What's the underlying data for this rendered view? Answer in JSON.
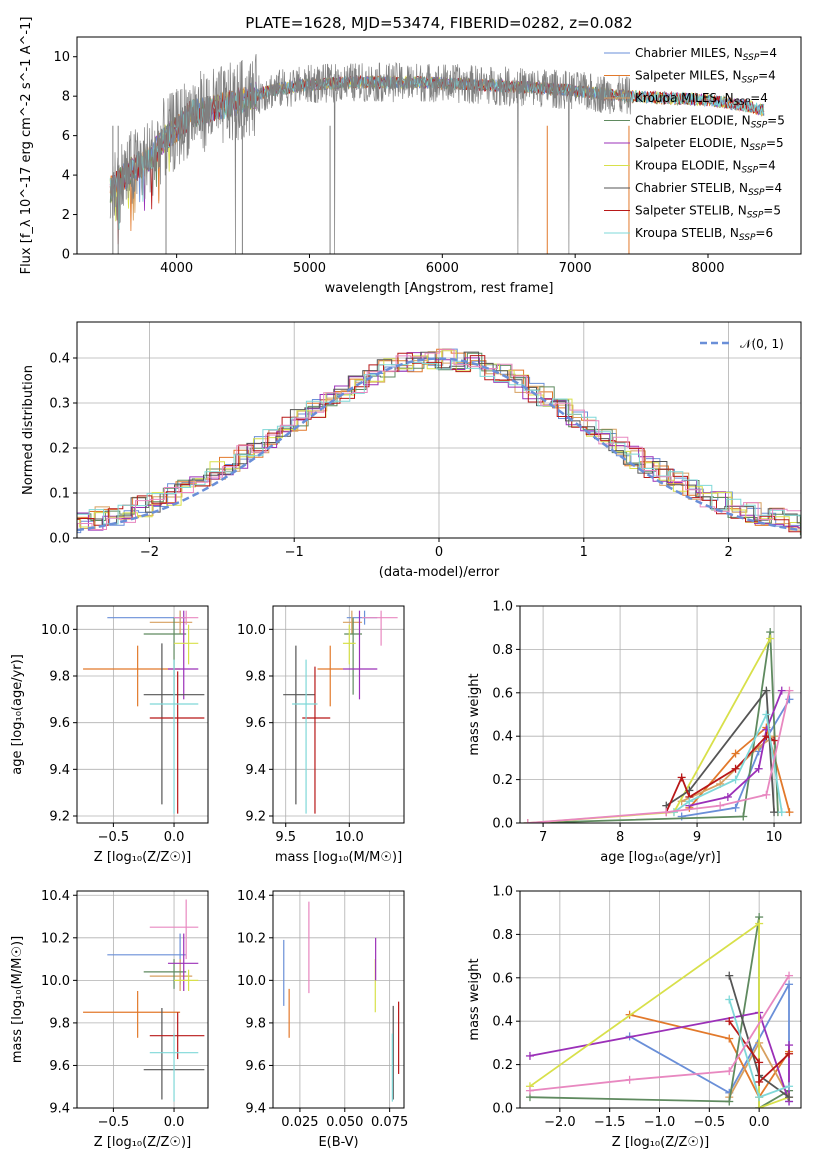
{
  "colors": {
    "c1": "#6a8fd8",
    "c2": "#e2792b",
    "c3": "#d7a060",
    "c4": "#5f8a5f",
    "c5": "#9b30b8",
    "c6": "#d8e04a",
    "c7": "#555555",
    "c8": "#b81818",
    "c9": "#7fd8d8",
    "c10": "#e888c0"
  },
  "chart_data": [
    {
      "id": "spectrum",
      "type": "line",
      "title": "PLATE=1628, MJD=53474, FIBERID=0282, z=0.082",
      "xlabel": "wavelength [Angstrom, rest frame]",
      "ylabel": "Flux [f_λ 10^-17 erg cm^-2 s^-1 A^-1]",
      "xlim": [
        3250,
        8700
      ],
      "ylim": [
        0,
        11
      ],
      "xticks": [
        "4000",
        "5000",
        "6000",
        "7000",
        "8000"
      ],
      "yticks": [
        "0",
        "2",
        "4",
        "6",
        "8",
        "10"
      ],
      "continuum": {
        "x": [
          3500,
          3650,
          3800,
          3900,
          4000,
          4100,
          4300,
          4500,
          4700,
          5000,
          5300,
          5600,
          5900,
          6200,
          6500,
          6800,
          7100,
          7400,
          7700,
          8000,
          8300,
          8400
        ],
        "y": [
          3.2,
          4.2,
          4.8,
          5.8,
          6.3,
          7.1,
          7.4,
          7.8,
          8.3,
          8.6,
          8.7,
          8.7,
          8.7,
          8.6,
          8.5,
          8.4,
          8.2,
          8.0,
          7.9,
          7.8,
          7.5,
          7.3
        ]
      },
      "legend_position": "upper-right",
      "legend": [
        {
          "label": "Chabrier MILES, N",
          "sub": "SSP",
          "n": "=4",
          "color": "c1"
        },
        {
          "label": "Salpeter MILES, N",
          "sub": "SSP",
          "n": "=4",
          "color": "c2"
        },
        {
          "label": "Kroupa MILES, N",
          "sub": "SSP",
          "n": "=4",
          "color": "c3"
        },
        {
          "label": "Chabrier ELODIE, N",
          "sub": "SSP",
          "n": "=5",
          "color": "c4"
        },
        {
          "label": "Salpeter ELODIE, N",
          "sub": "SSP",
          "n": "=5",
          "color": "c5"
        },
        {
          "label": "Kroupa ELODIE, N",
          "sub": "SSP",
          "n": "=4",
          "color": "c6"
        },
        {
          "label": "Chabrier STELIB, N",
          "sub": "SSP",
          "n": "=4",
          "color": "c7"
        },
        {
          "label": "Salpeter STELIB, N",
          "sub": "SSP",
          "n": "=5",
          "color": "c8"
        },
        {
          "label": "Kroupa STELIB, N",
          "sub": "SSP",
          "n": "=6",
          "color": "c9"
        }
      ]
    },
    {
      "id": "residuals",
      "type": "line",
      "xlabel": "(data-model)/error",
      "ylabel": "Normed distribution",
      "xlim": [
        -2.5,
        2.5
      ],
      "ylim": [
        0,
        0.48
      ],
      "xticks": [
        "−2",
        "−1",
        "0",
        "1",
        "2"
      ],
      "yticks": [
        "0.0",
        "0.1",
        "0.2",
        "0.3",
        "0.4"
      ],
      "grid": true,
      "legend_position": "upper-right",
      "legend": [
        {
          "label": "𝒩(0, 1)",
          "color": "c1",
          "style": "dashed"
        }
      ]
    },
    {
      "id": "age-vs-Z",
      "type": "scatter",
      "xlabel": "Z [log₁₀(Z/Z☉)]",
      "ylabel": "age  [log₁₀(age/yr)]",
      "xlim": [
        -0.8,
        0.28
      ],
      "ylim": [
        9.17,
        10.1
      ],
      "xticks": [
        "−0.5",
        "0.0"
      ],
      "yticks": [
        "9.2",
        "9.4",
        "9.6",
        "9.8",
        "10.0"
      ],
      "grid": true,
      "points": [
        {
          "x": 0.05,
          "y": 10.05,
          "xlo": -0.55,
          "xhi": 0.1,
          "ylo": 10.02,
          "yhi": 10.08,
          "color": "c1"
        },
        {
          "x": -0.3,
          "y": 9.83,
          "xlo": -0.75,
          "xhi": 0.05,
          "ylo": 9.67,
          "yhi": 9.93,
          "color": "c2"
        },
        {
          "x": 0.05,
          "y": 10.03,
          "xlo": -0.2,
          "xhi": 0.15,
          "ylo": 9.98,
          "yhi": 10.08,
          "color": "c3"
        },
        {
          "x": 0.0,
          "y": 9.98,
          "xlo": -0.25,
          "xhi": 0.1,
          "ylo": 9.72,
          "yhi": 10.05,
          "color": "c4"
        },
        {
          "x": 0.08,
          "y": 9.83,
          "xlo": -0.05,
          "xhi": 0.2,
          "ylo": 9.7,
          "yhi": 10.08,
          "color": "c5"
        },
        {
          "x": 0.12,
          "y": 9.94,
          "xlo": 0.0,
          "xhi": 0.2,
          "ylo": 9.85,
          "yhi": 10.02,
          "color": "c6"
        },
        {
          "x": -0.1,
          "y": 9.72,
          "xlo": -0.25,
          "xhi": 0.25,
          "ylo": 9.25,
          "yhi": 9.94,
          "color": "c7"
        },
        {
          "x": 0.03,
          "y": 9.62,
          "xlo": -0.2,
          "xhi": 0.25,
          "ylo": 9.21,
          "yhi": 9.82,
          "color": "c8"
        },
        {
          "x": 0.0,
          "y": 9.68,
          "xlo": -0.2,
          "xhi": 0.2,
          "ylo": 9.21,
          "yhi": 9.87,
          "color": "c9"
        },
        {
          "x": 0.1,
          "y": 10.05,
          "xlo": 0.0,
          "xhi": 0.2,
          "ylo": 10.02,
          "yhi": 10.08,
          "color": "c10"
        }
      ]
    },
    {
      "id": "age-vs-mass",
      "type": "scatter",
      "xlabel": "mass [log₁₀(M/M☉)]",
      "ylabel": "",
      "xlim": [
        9.4,
        10.43
      ],
      "ylim": [
        9.17,
        10.1
      ],
      "xticks": [
        "9.5",
        "10.0"
      ],
      "yticks": [
        "9.2",
        "9.4",
        "9.6",
        "9.8",
        "10.0"
      ],
      "grid": true,
      "points": [
        {
          "x": 10.12,
          "y": 10.05,
          "xlo": 9.98,
          "xhi": 10.22,
          "ylo": 10.02,
          "yhi": 10.08,
          "color": "c1"
        },
        {
          "x": 9.85,
          "y": 9.83,
          "xlo": 9.75,
          "xhi": 9.95,
          "ylo": 9.67,
          "yhi": 9.93,
          "color": "c2"
        },
        {
          "x": 10.02,
          "y": 10.03,
          "xlo": 9.95,
          "xhi": 10.1,
          "ylo": 9.98,
          "yhi": 10.08,
          "color": "c3"
        },
        {
          "x": 10.03,
          "y": 9.98,
          "xlo": 9.96,
          "xhi": 10.1,
          "ylo": 9.72,
          "yhi": 10.05,
          "color": "c4"
        },
        {
          "x": 10.08,
          "y": 9.83,
          "xlo": 9.95,
          "xhi": 10.22,
          "ylo": 9.7,
          "yhi": 10.08,
          "color": "c5"
        },
        {
          "x": 10.0,
          "y": 9.94,
          "xlo": 9.95,
          "xhi": 10.05,
          "ylo": 9.85,
          "yhi": 10.02,
          "color": "c6"
        },
        {
          "x": 9.58,
          "y": 9.72,
          "xlo": 9.48,
          "xhi": 9.73,
          "ylo": 9.25,
          "yhi": 9.93,
          "color": "c7"
        },
        {
          "x": 9.73,
          "y": 9.62,
          "xlo": 9.63,
          "xhi": 9.85,
          "ylo": 9.21,
          "yhi": 9.84,
          "color": "c8"
        },
        {
          "x": 9.66,
          "y": 9.68,
          "xlo": 9.55,
          "xhi": 9.75,
          "ylo": 9.21,
          "yhi": 9.87,
          "color": "c9"
        },
        {
          "x": 10.25,
          "y": 10.05,
          "xlo": 10.1,
          "xhi": 10.38,
          "ylo": 9.93,
          "yhi": 10.08,
          "color": "c10"
        }
      ]
    },
    {
      "id": "weight-vs-age",
      "type": "line",
      "xlabel": "age  [log₁₀(age/yr)]",
      "ylabel": "mass weight",
      "xlim": [
        6.7,
        10.35
      ],
      "ylim": [
        0,
        1
      ],
      "xticks": [
        "7",
        "8",
        "9",
        "10"
      ],
      "yticks": [
        "0.0",
        "0.2",
        "0.4",
        "0.6",
        "0.8",
        "1.0"
      ],
      "grid": true,
      "series": [
        {
          "color": "c1",
          "x": [
            8.8,
            9.5,
            9.8,
            10.2
          ],
          "y": [
            0.03,
            0.07,
            0.33,
            0.57
          ]
        },
        {
          "color": "c2",
          "x": [
            8.9,
            9.5,
            9.9,
            10.2
          ],
          "y": [
            0.07,
            0.32,
            0.44,
            0.05
          ]
        },
        {
          "color": "c3",
          "x": [
            8.8,
            9.3,
            9.8,
            10.0
          ],
          "y": [
            0.1,
            0.18,
            0.35,
            0.4
          ]
        },
        {
          "color": "c4",
          "x": [
            6.8,
            9.6,
            9.95,
            10.05
          ],
          "y": [
            0.0,
            0.03,
            0.88,
            0.05
          ]
        },
        {
          "color": "c5",
          "x": [
            8.9,
            9.4,
            9.8,
            9.9,
            10.1
          ],
          "y": [
            0.08,
            0.12,
            0.25,
            0.43,
            0.61
          ]
        },
        {
          "color": "c6",
          "x": [
            6.8,
            8.7,
            9.95
          ],
          "y": [
            0.0,
            0.05,
            0.85
          ]
        },
        {
          "color": "c7",
          "x": [
            8.6,
            8.9,
            9.9,
            10.0
          ],
          "y": [
            0.08,
            0.15,
            0.61,
            0.05
          ]
        },
        {
          "color": "c8",
          "x": [
            8.6,
            8.8,
            8.9,
            9.5,
            9.9,
            10.0
          ],
          "y": [
            0.05,
            0.21,
            0.12,
            0.25,
            0.4,
            0.38
          ]
        },
        {
          "color": "c9",
          "x": [
            8.7,
            8.9,
            9.5,
            9.9,
            10.1
          ],
          "y": [
            0.05,
            0.1,
            0.2,
            0.5,
            0.05
          ]
        },
        {
          "color": "c10",
          "x": [
            6.8,
            8.6,
            9.3,
            9.9,
            10.2
          ],
          "y": [
            0.0,
            0.05,
            0.08,
            0.13,
            0.61
          ]
        }
      ]
    },
    {
      "id": "mass-vs-Z",
      "type": "scatter",
      "xlabel": "Z [log₁₀(Z/Z☉)]",
      "ylabel": "mass [log₁₀(M/M☉)]",
      "xlim": [
        -0.8,
        0.28
      ],
      "ylim": [
        9.4,
        10.42
      ],
      "xticks": [
        "−0.5",
        "0.0"
      ],
      "yticks": [
        "9.4",
        "9.6",
        "9.8",
        "10.0",
        "10.2",
        "10.4"
      ],
      "grid": true,
      "points": [
        {
          "x": 0.05,
          "y": 10.12,
          "xlo": -0.55,
          "xhi": 0.1,
          "ylo": 9.98,
          "yhi": 10.22,
          "color": "c1"
        },
        {
          "x": -0.3,
          "y": 9.85,
          "xlo": -0.75,
          "xhi": 0.05,
          "ylo": 9.73,
          "yhi": 9.95,
          "color": "c2"
        },
        {
          "x": 0.05,
          "y": 10.02,
          "xlo": -0.2,
          "xhi": 0.15,
          "ylo": 9.95,
          "yhi": 10.1,
          "color": "c3"
        },
        {
          "x": 0.0,
          "y": 10.04,
          "xlo": -0.25,
          "xhi": 0.1,
          "ylo": 9.96,
          "yhi": 10.1,
          "color": "c4"
        },
        {
          "x": 0.08,
          "y": 10.08,
          "xlo": -0.05,
          "xhi": 0.2,
          "ylo": 9.95,
          "yhi": 10.22,
          "color": "c5"
        },
        {
          "x": 0.12,
          "y": 10.0,
          "xlo": 0.0,
          "xhi": 0.2,
          "ylo": 9.95,
          "yhi": 10.05,
          "color": "c6"
        },
        {
          "x": -0.1,
          "y": 9.58,
          "xlo": -0.25,
          "xhi": 0.25,
          "ylo": 9.44,
          "yhi": 9.87,
          "color": "c7"
        },
        {
          "x": 0.03,
          "y": 9.74,
          "xlo": -0.2,
          "xhi": 0.25,
          "ylo": 9.63,
          "yhi": 9.85,
          "color": "c8"
        },
        {
          "x": 0.0,
          "y": 9.66,
          "xlo": -0.2,
          "xhi": 0.2,
          "ylo": 9.43,
          "yhi": 9.75,
          "color": "c9"
        },
        {
          "x": 0.1,
          "y": 10.25,
          "xlo": -0.2,
          "xhi": 0.2,
          "ylo": 10.1,
          "yhi": 10.38,
          "color": "c10"
        }
      ]
    },
    {
      "id": "mass-vs-EBV",
      "type": "scatter",
      "xlabel": "E(B-V)",
      "ylabel": "",
      "xlim": [
        0.01,
        0.083
      ],
      "ylim": [
        9.4,
        10.42
      ],
      "xticks": [
        "0.025",
        "0.050",
        "0.075"
      ],
      "yticks": [
        "9.4",
        "9.6",
        "9.8",
        "10.0",
        "10.2",
        "10.4"
      ],
      "grid": true,
      "points": [
        {
          "x": 0.016,
          "y": 10.05,
          "ylo": 9.88,
          "yhi": 10.19,
          "color": "c1"
        },
        {
          "x": 0.019,
          "y": 9.84,
          "ylo": 9.73,
          "yhi": 9.96,
          "color": "c2"
        },
        {
          "x": 0.067,
          "y": 10.0,
          "ylo": 9.85,
          "yhi": 10.1,
          "color": "c6"
        },
        {
          "x": 0.0672,
          "y": 10.1,
          "ylo": 10.0,
          "yhi": 10.2,
          "color": "c5"
        },
        {
          "x": 0.077,
          "y": 9.67,
          "ylo": 9.44,
          "yhi": 9.88,
          "color": "c7"
        },
        {
          "x": 0.08,
          "y": 9.73,
          "ylo": 9.56,
          "yhi": 9.9,
          "color": "c8"
        },
        {
          "x": 0.0765,
          "y": 9.6,
          "ylo": 9.43,
          "yhi": 9.75,
          "color": "c9"
        },
        {
          "x": 0.03,
          "y": 10.15,
          "ylo": 9.94,
          "yhi": 10.37,
          "color": "c10"
        }
      ]
    },
    {
      "id": "weight-vs-Z",
      "type": "line",
      "xlabel": "Z [log₁₀(Z/Z☉)]",
      "ylabel": "mass weight",
      "xlim": [
        -2.4,
        0.42
      ],
      "ylim": [
        0,
        1
      ],
      "xticks": [
        "−2.0",
        "−1.5",
        "−1.0",
        "−0.5",
        "0.0"
      ],
      "yticks": [
        "0.0",
        "0.2",
        "0.4",
        "0.6",
        "0.8",
        "1.0"
      ],
      "grid": true,
      "series": [
        {
          "color": "c1",
          "x": [
            -1.3,
            -0.3,
            0.3,
            0.3
          ],
          "y": [
            0.33,
            0.07,
            0.57,
            0.03
          ]
        },
        {
          "color": "c2",
          "x": [
            -1.3,
            -0.3,
            0.0,
            0.3
          ],
          "y": [
            0.43,
            0.32,
            0.05,
            0.26
          ]
        },
        {
          "color": "c3",
          "x": [
            -0.3,
            0.0,
            0.3
          ],
          "y": [
            0.05,
            0.3,
            0.05
          ]
        },
        {
          "color": "c4",
          "x": [
            -2.3,
            -0.3,
            0.0,
            0.0,
            0.3
          ],
          "y": [
            0.05,
            0.03,
            0.88,
            0.0,
            0.08
          ]
        },
        {
          "color": "c5",
          "x": [
            -2.3,
            0.0,
            0.3,
            0.3
          ],
          "y": [
            0.24,
            0.44,
            0.03,
            0.29
          ]
        },
        {
          "color": "c6",
          "x": [
            -2.3,
            0.0,
            0.0,
            0.3
          ],
          "y": [
            0.1,
            0.85,
            0.0,
            0.05
          ]
        },
        {
          "color": "c7",
          "x": [
            -0.3,
            0.0,
            0.3
          ],
          "y": [
            0.61,
            0.15,
            0.05
          ]
        },
        {
          "color": "c8",
          "x": [
            -0.3,
            0.0,
            0.0,
            0.3
          ],
          "y": [
            0.4,
            0.21,
            0.12,
            0.25
          ]
        },
        {
          "color": "c9",
          "x": [
            -0.3,
            0.0,
            0.3
          ],
          "y": [
            0.5,
            0.05,
            0.1
          ]
        },
        {
          "color": "c10",
          "x": [
            -2.3,
            -1.3,
            -0.3,
            0.3
          ],
          "y": [
            0.08,
            0.13,
            0.17,
            0.61
          ]
        }
      ]
    }
  ]
}
